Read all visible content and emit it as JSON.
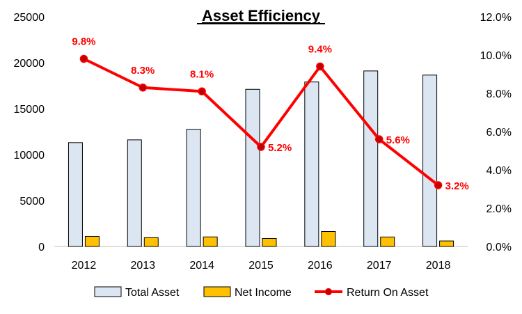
{
  "chart_data": {
    "type": "bar",
    "title": "Asset Efficiency",
    "categories": [
      "2012",
      "2013",
      "2014",
      "2015",
      "2016",
      "2017",
      "2018"
    ],
    "series": [
      {
        "name": "Total Asset",
        "kind": "bar",
        "axis": "left",
        "values": [
          11300,
          11600,
          12750,
          17100,
          17900,
          19100,
          18650
        ]
      },
      {
        "name": "Net Income",
        "kind": "bar",
        "axis": "left",
        "values": [
          1100,
          960,
          1040,
          870,
          1630,
          1030,
          600
        ]
      },
      {
        "name": "Return On Asset",
        "kind": "line",
        "axis": "right",
        "values": [
          9.8,
          8.3,
          8.1,
          5.2,
          9.4,
          5.6,
          3.2
        ],
        "labels": [
          "9.8%",
          "8.3%",
          "8.1%",
          "5.2%",
          "9.4%",
          "5.6%",
          "3.2%"
        ]
      }
    ],
    "left_axis": {
      "ylim": [
        0,
        25000
      ],
      "ticks": [
        "0",
        "5000",
        "10000",
        "15000",
        "20000",
        "25000"
      ],
      "tick_values": [
        0,
        5000,
        10000,
        15000,
        20000,
        25000
      ]
    },
    "right_axis": {
      "ylim": [
        0,
        12
      ],
      "ticks": [
        "0.0%",
        "2.0%",
        "4.0%",
        "6.0%",
        "8.0%",
        "10.0%",
        "12.0%"
      ],
      "tick_values": [
        0,
        2,
        4,
        6,
        8,
        10,
        12
      ]
    },
    "legend": {
      "position": "bottom",
      "items": [
        "Total Asset",
        "Net Income",
        "Return On Asset"
      ]
    },
    "colors": {
      "total_asset_fill": "#DCE6F2",
      "net_income_fill": "#FFC000",
      "line": "#FF0000",
      "marker_fill": "#C00000",
      "label": "#FF0000"
    }
  }
}
